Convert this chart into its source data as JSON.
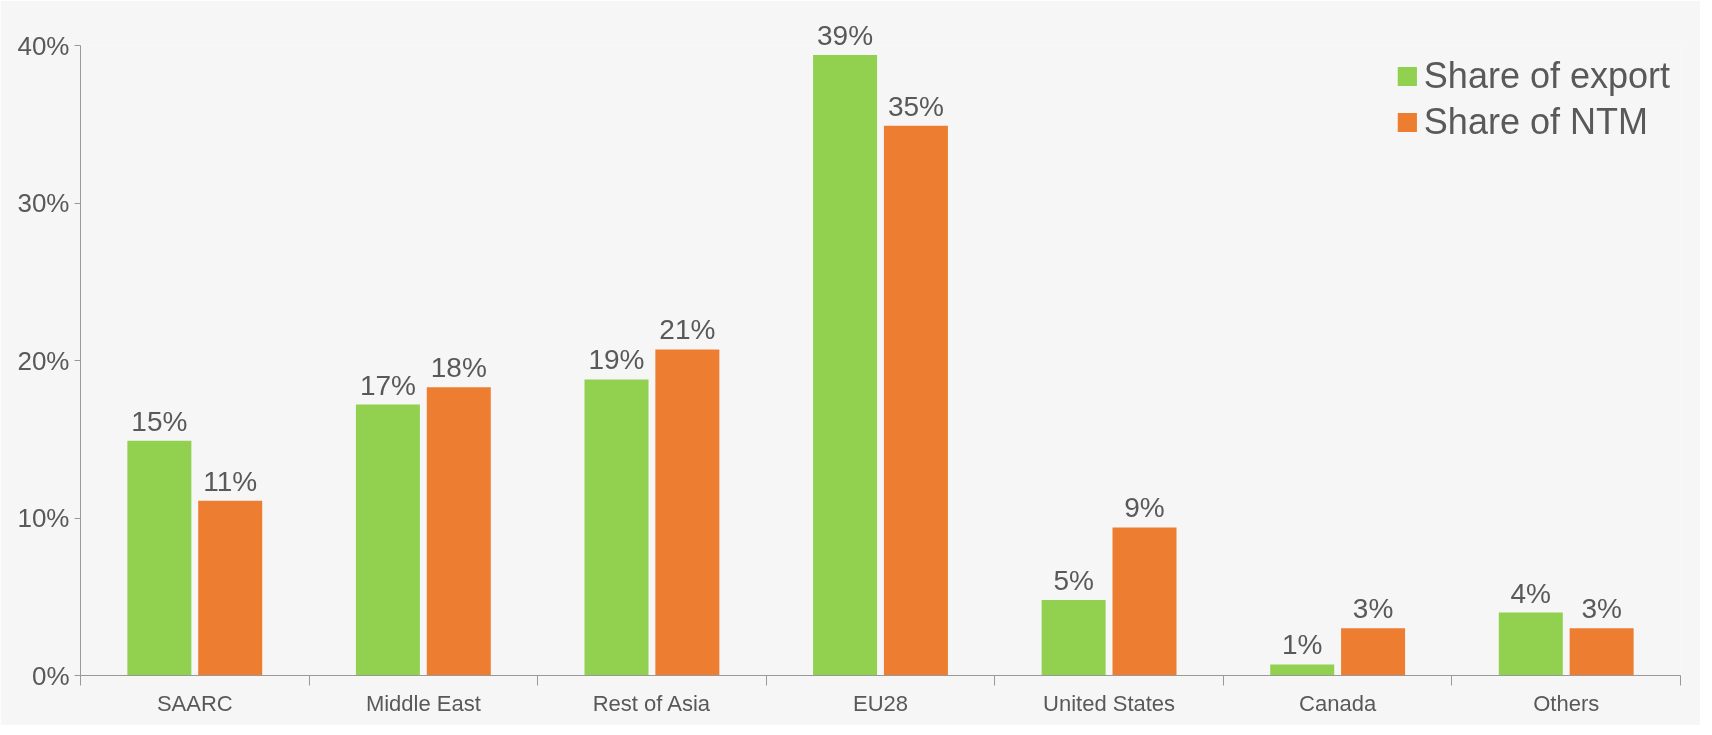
{
  "chart_data": {
    "type": "bar",
    "categories": [
      "SAARC",
      "Middle East",
      "Rest of Asia",
      "EU28",
      "United States",
      "Canada",
      "Others"
    ],
    "series": [
      {
        "name": "Share of export",
        "color": "#92d050",
        "values": [
          14.9,
          17.2,
          18.8,
          39.4,
          4.8,
          0.7,
          4.0
        ],
        "value_labels": [
          "15%",
          "17%",
          "19%",
          "39%",
          "5%",
          "1%",
          "4%"
        ]
      },
      {
        "name": "Share of NTM",
        "color": "#ed7d31",
        "values": [
          11.1,
          18.3,
          20.7,
          34.9,
          9.4,
          3.0,
          3.0
        ],
        "value_labels": [
          "11%",
          "18%",
          "21%",
          "35%",
          "9%",
          "3%",
          "3%"
        ]
      }
    ],
    "ylim": [
      0,
      40
    ],
    "yticks": [
      {
        "value": 0,
        "label": "0%"
      },
      {
        "value": 10,
        "label": "10%"
      },
      {
        "value": 20,
        "label": "20%"
      },
      {
        "value": 30,
        "label": "30%"
      },
      {
        "value": 40,
        "label": "40%"
      }
    ],
    "legend": "top right",
    "grid": false
  }
}
